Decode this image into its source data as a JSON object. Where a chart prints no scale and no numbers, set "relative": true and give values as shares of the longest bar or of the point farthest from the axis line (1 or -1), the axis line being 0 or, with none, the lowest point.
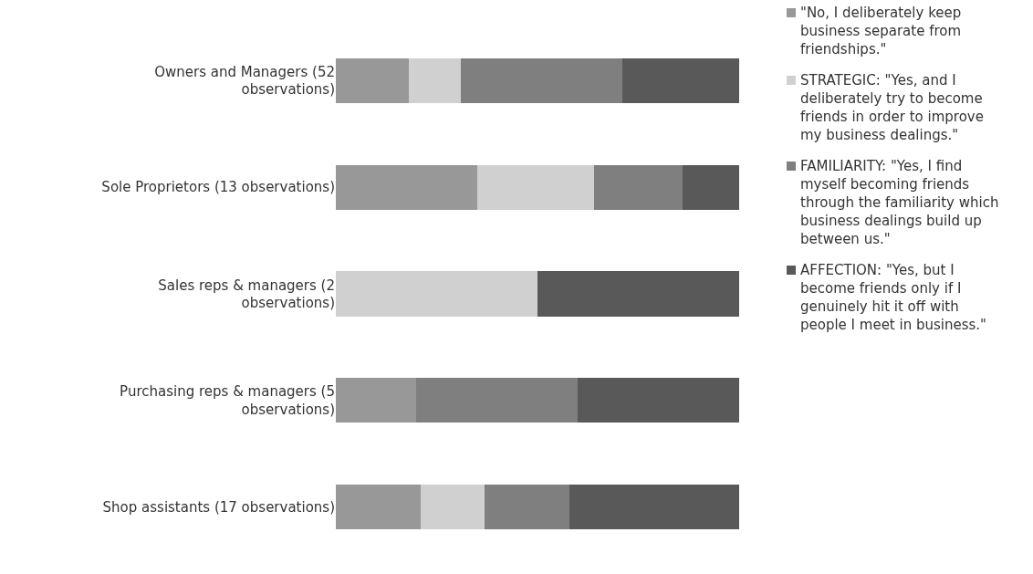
{
  "chart_data": {
    "type": "bar",
    "orientation": "horizontal",
    "stacked": true,
    "relative": true,
    "legend": "right",
    "categories": [
      "Owners and Managers (52 observations)",
      "Sole Proprietors (13 observations)",
      "Sales reps & managers (2 observations)",
      "Purchasing reps & managers (5 observations)",
      "Shop assistants (17 observations)"
    ],
    "series": [
      {
        "name": "\"No, I deliberately keep business separate from friendships.\"",
        "color": "#989898",
        "values": [
          0.18,
          0.35,
          0,
          0.2,
          0.21
        ]
      },
      {
        "name": "STRATEGIC: \"Yes, and I deliberately try to become friends in order to improve my business dealings.\"",
        "color": "#d0d0d0",
        "values": [
          0.13,
          0.29,
          0.5,
          0,
          0.16
        ]
      },
      {
        "name": "FAMILIARITY: \"Yes, I find myself becoming friends through the familiarity which business dealings build up between us.\"",
        "color": "#7f7f7f",
        "values": [
          0.4,
          0.22,
          0,
          0.4,
          0.21
        ]
      },
      {
        "name": "AFFECTION: \"Yes, but I become friends only if I genuinely hit it off with people I meet in business.\"",
        "color": "#595959",
        "values": [
          0.29,
          0.14,
          0.5,
          0.4,
          0.42
        ]
      }
    ]
  }
}
